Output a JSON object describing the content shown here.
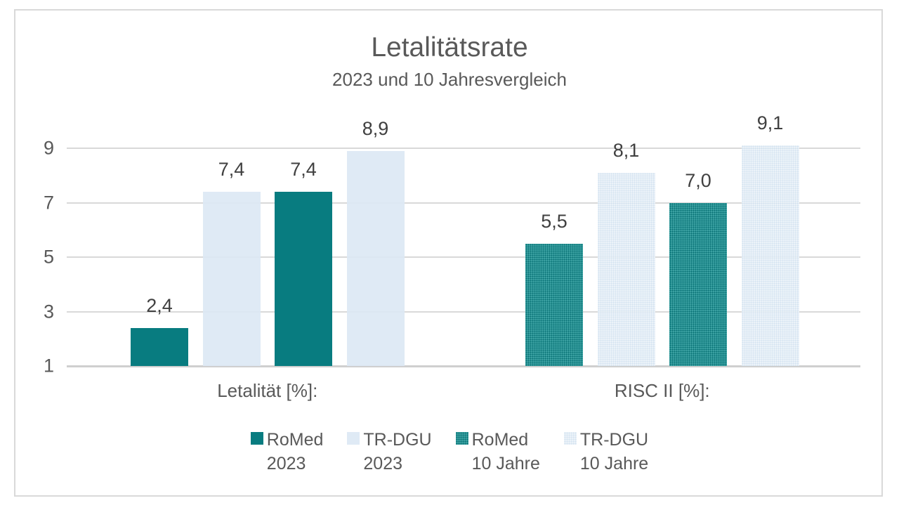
{
  "chart_data": {
    "type": "bar",
    "title": "Letalitätsrate",
    "subtitle": "2023 und 10 Jahresvergleich",
    "categories": [
      "Letalität [%]:",
      "RISC II [%]:"
    ],
    "series": [
      {
        "name_line1": "RoMed",
        "name_line2": "2023",
        "color_key": "teal",
        "values": [
          2.4,
          5.5
        ],
        "value_labels": [
          "2,4",
          "5,5"
        ]
      },
      {
        "name_line1": "TR-DGU",
        "name_line2": "2023",
        "color_key": "lightblue",
        "values": [
          7.4,
          8.1
        ],
        "value_labels": [
          "7,4",
          "8,1"
        ]
      },
      {
        "name_line1": "RoMed",
        "name_line2": "10 Jahre",
        "color_key": "teal",
        "values": [
          7.4,
          7.0
        ],
        "value_labels": [
          "7,4",
          "7,0"
        ]
      },
      {
        "name_line1": "TR-DGU",
        "name_line2": "10 Jahre",
        "color_key": "lightblue",
        "values": [
          8.9,
          9.1
        ],
        "value_labels": [
          "8,9",
          "9,1"
        ]
      }
    ],
    "y_ticks": [
      9,
      7,
      5,
      3,
      1
    ],
    "y_min": 1,
    "ylim": [
      1,
      9.2
    ],
    "grid": true,
    "legend_position": "bottom",
    "textured_categories": [
      false,
      true
    ],
    "legend_textured": [
      false,
      false,
      true,
      true
    ],
    "colors": {
      "teal": "#087C80",
      "teal_textured_base": "#3AA0A1",
      "teal_textured_dot": "#066F73",
      "lightblue": "#DBE8F4",
      "lightblue_textured_base": "#EBF2F9",
      "lightblue_textured_dot": "#CFE0EF",
      "gridline": "#D9D9D9",
      "axis_line": "#CFCFCF",
      "border": "#D9D9D9",
      "text": "#595959",
      "value_label": "#404040"
    }
  }
}
